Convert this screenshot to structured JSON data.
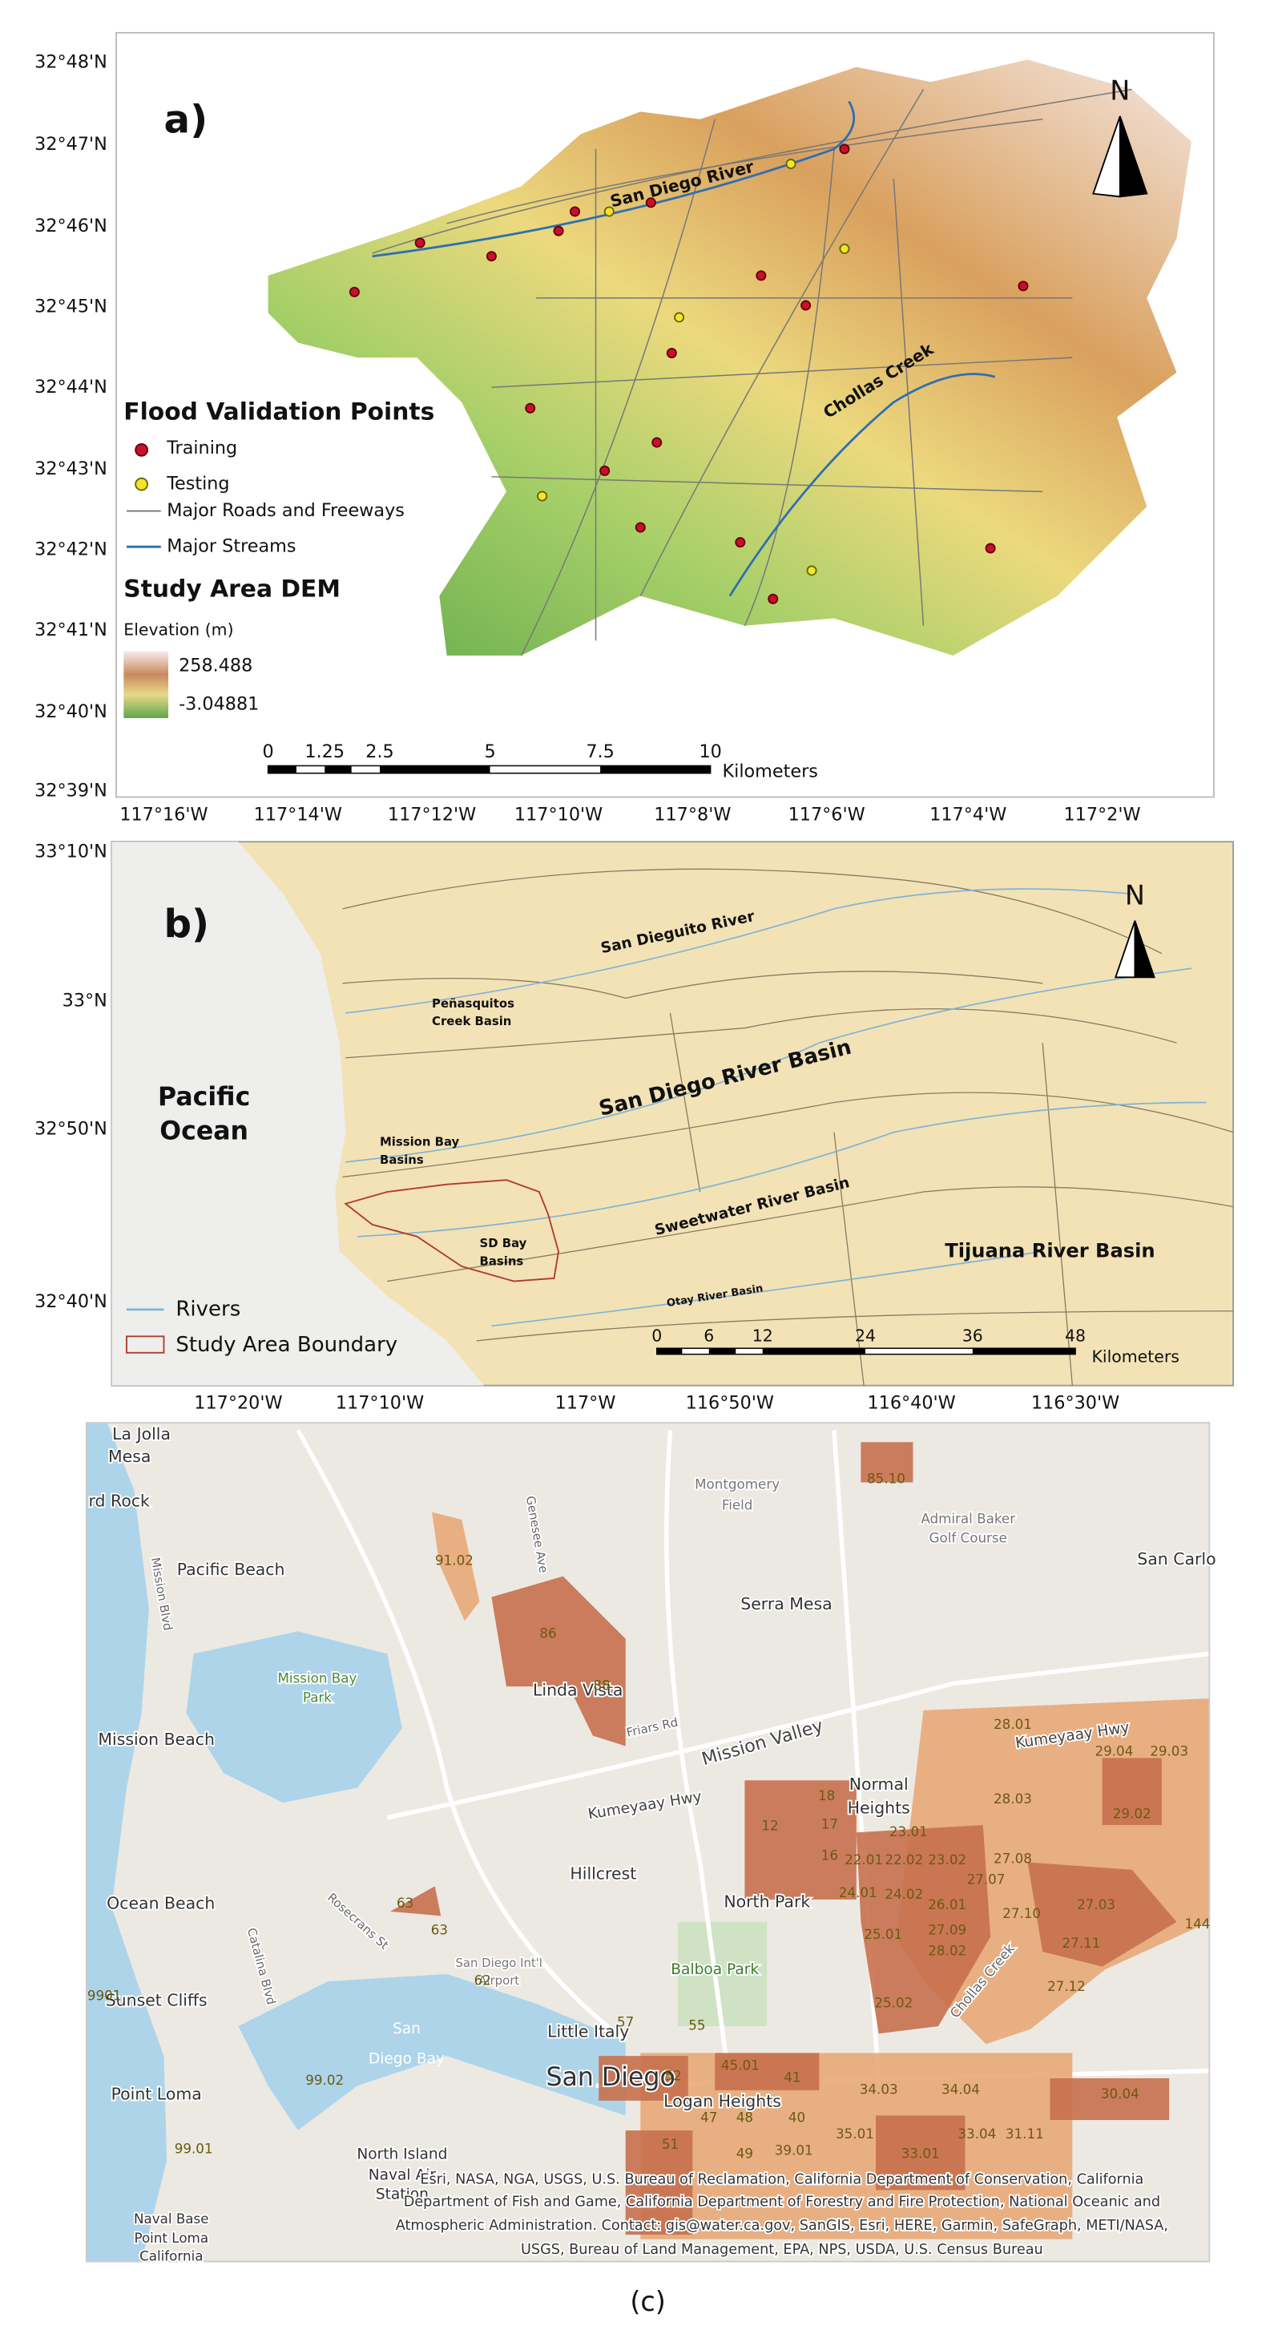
{
  "panel_a": {
    "label": "a)",
    "north": "N",
    "lat_labels": [
      "32°48'N",
      "32°47'N",
      "32°46'N",
      "32°45'N",
      "32°44'N",
      "32°43'N",
      "32°42'N",
      "32°41'N",
      "32°40'N",
      "32°39'N"
    ],
    "lon_labels": [
      "117°16'W",
      "117°14'W",
      "117°12'W",
      "117°10'W",
      "117°8'W",
      "117°6'W",
      "117°4'W",
      "117°2'W"
    ],
    "rivers": [
      "San Diego River",
      "Chollas Creek"
    ],
    "legend": {
      "title": "Flood Validation Points",
      "items": [
        "Training",
        "Testing",
        "Major Roads and Freeways",
        "Major Streams"
      ]
    },
    "dem": {
      "title": "Study Area DEM",
      "label": "Elevation (m)",
      "max": "258.488",
      "min": "-3.04881"
    },
    "scale": {
      "ticks": [
        "0",
        "1.25",
        "2.5",
        "5",
        "7.5",
        "10"
      ],
      "unit": "Kilometers"
    }
  },
  "panel_b": {
    "label": "b)",
    "north": "N",
    "lat_labels": [
      "33°10'N",
      "33°N",
      "32°50'N",
      "32°40'N"
    ],
    "lon_labels": [
      "117°20'W",
      "117°10'W",
      "117°W",
      "116°50'W",
      "116°40'W",
      "116°30'W"
    ],
    "ocean": [
      "Pacific",
      "Ocean"
    ],
    "basins": [
      "San Dieguito River",
      "Peñasquitos",
      "Creek Basin",
      "San Diego River Basin",
      "Mission Bay",
      "Basins",
      "Sweetwater River Basin",
      "SD Bay",
      "Basins",
      "Tijuana River Basin",
      "Otay River Basin"
    ],
    "legend": [
      "Rivers",
      "Study Area Boundary"
    ],
    "scale": {
      "ticks": [
        "0",
        "6",
        "12",
        "24",
        "36",
        "48"
      ],
      "unit": "Kilometers"
    }
  },
  "panel_c": {
    "places": [
      "La Jolla",
      "Mesa",
      "rd Rock",
      "Pacific Beach",
      "Mission Bay",
      "Park",
      "Mission Beach",
      "Ocean Beach",
      "Sunset Cliffs",
      "Point Loma",
      "Montgomery",
      "Field",
      "Admiral Baker",
      "Golf Course",
      "San Carlo",
      "Serra Mesa",
      "Linda Vista",
      "Mission Valley",
      "Kumeyaay Hwy",
      "Kumeyaay Hwy",
      "Normal",
      "Heights",
      "Hillcrest",
      "North Park",
      "Balboa Park",
      "Little Italy",
      "San Diego",
      "Logan Heights",
      "San",
      "Diego Bay",
      "North Island",
      "Naval Air",
      "Station",
      "Naval Base",
      "Point Loma",
      "California",
      "Genesee Ave",
      "Friars Rd",
      "Rosecrans St",
      "Catalina Blvd",
      "Mission Blvd",
      "Chollas Creek",
      "San Diego Int'l",
      "Airport"
    ],
    "tracts": [
      "85.10",
      "91.02",
      "86",
      "88",
      "28.01",
      "29.04",
      "29.03",
      "28.03",
      "29.02",
      "18",
      "17",
      "12",
      "16",
      "22.01",
      "22.02",
      "23.01",
      "23.02",
      "27.08",
      "27.07",
      "24.01",
      "24.02",
      "26.01",
      "27.10",
      "27.03",
      "25.01",
      "27.09",
      "28.02",
      "27.11",
      "27.12",
      "25.02",
      "144",
      "63",
      "63",
      "62",
      "57",
      "55",
      "52",
      "45.01",
      "41",
      "34.03",
      "34.04",
      "30.04",
      "47",
      "48",
      "40",
      "35.01",
      "33.04",
      "31.11",
      "51",
      "49",
      "39.01",
      "33.01",
      "9901",
      "99.01",
      "99.02"
    ],
    "attribution": [
      "Esri, NASA, NGA, USGS, U.S. Bureau of Reclamation, California Department of Conservation, California",
      "Department of Fish and Game, California Department of Forestry and Fire Protection, National Oceanic and",
      "Atmospheric Administration. Contact: gis@water.ca.gov, SanGIS, Esri, HERE, Garmin, SafeGraph, METI/NASA,",
      "USGS, Bureau of Land Management, EPA, NPS, USDA, U.S. Census Bureau"
    ],
    "caption": "(c)"
  }
}
